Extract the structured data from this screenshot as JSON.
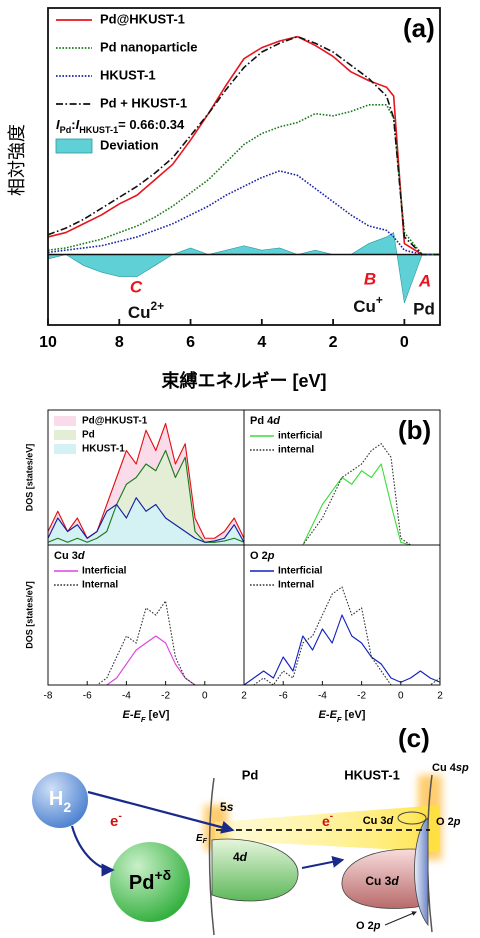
{
  "chart_data": [
    {
      "type": "line",
      "panel_label": "(a)",
      "ylabel": "相対強度",
      "xlabel": "束縛エネルギー [eV]",
      "xlim": [
        10,
        -1
      ],
      "xticks": [
        10,
        8,
        6,
        4,
        2,
        0
      ],
      "ylim": [
        -0.32,
        1.12
      ],
      "legend": "upper left",
      "x": [
        10,
        9.5,
        9,
        8.5,
        8,
        7.5,
        7,
        6.5,
        6,
        5.5,
        5,
        4.5,
        4,
        3.5,
        3,
        2.5,
        2,
        1.5,
        1,
        0.5,
        0.3,
        0,
        -0.5,
        -1
      ],
      "series": [
        {
          "name": "Pd@HKUST-1",
          "color": "#e8141e",
          "style": "solid",
          "values": [
            0.08,
            0.1,
            0.14,
            0.18,
            0.23,
            0.27,
            0.34,
            0.41,
            0.52,
            0.64,
            0.77,
            0.89,
            0.94,
            0.97,
            0.99,
            0.95,
            0.9,
            0.83,
            0.79,
            0.76,
            0.72,
            0.05,
            0,
            0
          ]
        },
        {
          "name": "Pd nanoparticle",
          "color": "#1c7a1c",
          "style": "dotted",
          "values": [
            0.02,
            0.03,
            0.05,
            0.07,
            0.1,
            0.13,
            0.17,
            0.22,
            0.28,
            0.34,
            0.42,
            0.5,
            0.55,
            0.58,
            0.6,
            0.64,
            0.63,
            0.65,
            0.68,
            0.68,
            0.62,
            0.1,
            0,
            0
          ]
        },
        {
          "name": "HKUST-1",
          "color": "#1a22a8",
          "style": "dotted",
          "values": [
            0.01,
            0.02,
            0.03,
            0.04,
            0.06,
            0.08,
            0.11,
            0.14,
            0.18,
            0.22,
            0.27,
            0.31,
            0.35,
            0.38,
            0.36,
            0.3,
            0.24,
            0.18,
            0.13,
            0.11,
            0.08,
            0.02,
            0,
            0
          ]
        },
        {
          "name": "Pd + HKUST-1",
          "color": "#111111",
          "style": "dashdot",
          "values": [
            0.09,
            0.12,
            0.16,
            0.21,
            0.26,
            0.31,
            0.37,
            0.44,
            0.54,
            0.64,
            0.75,
            0.85,
            0.92,
            0.96,
            0.99,
            0.96,
            0.92,
            0.86,
            0.8,
            0.72,
            0.62,
            0.08,
            0,
            0
          ]
        },
        {
          "name": "Deviation",
          "color": "#5fd0d6",
          "style": "area",
          "values": [
            -0.02,
            0,
            -0.05,
            -0.08,
            -0.1,
            -0.1,
            -0.05,
            0,
            0.03,
            0,
            0.02,
            0.04,
            0.02,
            0.03,
            0,
            0.02,
            0,
            0,
            0.05,
            0.08,
            0.1,
            -0.22,
            0,
            0
          ]
        }
      ],
      "ratio_label": [
        "I",
        "Pd",
        ":",
        "I",
        "HKUST-1",
        "= 0.66:0.34"
      ],
      "annotations": [
        {
          "text": "C",
          "color": "#e8141e"
        },
        {
          "text": [
            "Cu",
            "2+"
          ],
          "color": "#111111"
        },
        {
          "text": "B",
          "color": "#e8141e"
        },
        {
          "text": [
            "Cu",
            "+"
          ],
          "color": "#111111"
        },
        {
          "text": "A",
          "color": "#e8141e"
        },
        {
          "text": "Pd",
          "color": "#111111"
        }
      ]
    },
    {
      "type": "line",
      "ylabel": "DOS [states/eV]",
      "xlim": [
        -8,
        2
      ],
      "ylim": [
        0,
        1
      ],
      "legend": "upper left",
      "x": [
        -8,
        -7.5,
        -7,
        -6.5,
        -6,
        -5.5,
        -5,
        -4.5,
        -4,
        -3.5,
        -3,
        -2.5,
        -2,
        -1.5,
        -1,
        -0.5,
        0,
        0.5,
        1,
        1.5,
        2
      ],
      "series": [
        {
          "name": "Pd@HKUST-1",
          "color": "#e01010",
          "fill": "#f9dbe9",
          "style": "solid",
          "values": [
            0.1,
            0.25,
            0.1,
            0.2,
            0.05,
            0.1,
            0.3,
            0.5,
            0.7,
            0.6,
            0.85,
            0.7,
            0.9,
            0.6,
            0.75,
            0.2,
            0.05,
            0.05,
            0.1,
            0.2,
            0.05
          ]
        },
        {
          "name": "Pd",
          "color": "#1a7a1a",
          "fill": "#e4eed6",
          "style": "solid",
          "values": [
            0.02,
            0.05,
            0.02,
            0.05,
            0.02,
            0.05,
            0.1,
            0.3,
            0.45,
            0.5,
            0.6,
            0.55,
            0.7,
            0.5,
            0.65,
            0.1,
            0.02,
            0.02,
            0.03,
            0.05,
            0.02
          ]
        },
        {
          "name": "HKUST-1",
          "color": "#1020a0",
          "fill": "#d4f1f4",
          "style": "solid",
          "values": [
            0.05,
            0.2,
            0.1,
            0.15,
            0.05,
            0.1,
            0.25,
            0.3,
            0.2,
            0.35,
            0.25,
            0.3,
            0.2,
            0.15,
            0.1,
            0.05,
            0.02,
            0.03,
            0.05,
            0.15,
            0.02
          ]
        }
      ]
    },
    {
      "type": "line",
      "panel_label": "(b)",
      "title": [
        "Pd 4",
        "d"
      ],
      "xlim": [
        -8,
        2
      ],
      "ylim": [
        0,
        1
      ],
      "legend": "upper left",
      "x": [
        -8,
        -7.5,
        -7,
        -6.5,
        -6,
        -5.5,
        -5,
        -4.5,
        -4,
        -3.5,
        -3,
        -2.5,
        -2,
        -1.5,
        -1,
        -0.5,
        0,
        0.5,
        1,
        1.5,
        2
      ],
      "series": [
        {
          "name": "interficial",
          "color": "#3ddc3d",
          "style": "solid",
          "values": [
            0,
            0,
            0,
            0,
            0,
            0,
            0,
            0.15,
            0.3,
            0.4,
            0.5,
            0.45,
            0.55,
            0.5,
            0.6,
            0.3,
            0.02,
            0,
            0,
            0,
            0
          ]
        },
        {
          "name": "internal",
          "color": "#333333",
          "style": "dotted",
          "values": [
            0,
            0,
            0,
            0,
            0,
            0,
            0,
            0.1,
            0.2,
            0.35,
            0.5,
            0.55,
            0.6,
            0.7,
            0.75,
            0.65,
            0.05,
            0,
            0,
            0,
            0
          ]
        }
      ]
    },
    {
      "type": "line",
      "title": [
        "Cu 3",
        "d"
      ],
      "ylabel": "DOS [states/eV]",
      "xlabel": [
        "E",
        "-",
        "E",
        "F",
        " [eV]"
      ],
      "xlim": [
        -8,
        2
      ],
      "xticks": [
        -8,
        -6,
        -4,
        -2,
        0,
        2
      ],
      "ylim": [
        0,
        1
      ],
      "legend": "upper left",
      "x": [
        -8,
        -7.5,
        -7,
        -6.5,
        -6,
        -5.5,
        -5,
        -4.5,
        -4,
        -3.5,
        -3,
        -2.5,
        -2,
        -1.5,
        -1,
        -0.5,
        0,
        0.5,
        1,
        1.5,
        2
      ],
      "series": [
        {
          "name": "Interficial",
          "color": "#e040e0",
          "style": "solid",
          "values": [
            0,
            0,
            0,
            0,
            0,
            0,
            0,
            0.05,
            0.15,
            0.25,
            0.3,
            0.35,
            0.3,
            0.15,
            0.05,
            0,
            0,
            0,
            0,
            0,
            0
          ]
        },
        {
          "name": "Internal",
          "color": "#333333",
          "style": "dotted",
          "values": [
            0,
            0,
            0,
            0,
            0,
            0,
            0.05,
            0.2,
            0.35,
            0.3,
            0.55,
            0.5,
            0.6,
            0.2,
            0.05,
            0,
            0,
            0,
            0,
            0,
            0
          ]
        }
      ]
    },
    {
      "type": "line",
      "title": [
        "O 2",
        "p"
      ],
      "xlabel": [
        "E",
        "-",
        "E",
        "F",
        " [eV]"
      ],
      "xlim": [
        -8,
        2
      ],
      "xticks": [
        -6,
        -4,
        -2,
        0,
        2
      ],
      "ylim": [
        0,
        1
      ],
      "legend": "upper left",
      "x": [
        -8,
        -7.5,
        -7,
        -6.5,
        -6,
        -5.5,
        -5,
        -4.5,
        -4,
        -3.5,
        -3,
        -2.5,
        -2,
        -1.5,
        -1,
        -0.5,
        0,
        0.5,
        1,
        1.5,
        2
      ],
      "series": [
        {
          "name": "Interficial",
          "color": "#1020c0",
          "style": "solid",
          "values": [
            0,
            0.05,
            0.1,
            0.05,
            0.2,
            0.1,
            0.35,
            0.25,
            0.4,
            0.3,
            0.5,
            0.35,
            0.3,
            0.2,
            0.15,
            0.05,
            0.02,
            0.05,
            0.1,
            0.05,
            0.02
          ]
        },
        {
          "name": "Internal",
          "color": "#333333",
          "style": "dotted",
          "values": [
            0,
            0,
            0.05,
            0,
            0.1,
            0.05,
            0.3,
            0.35,
            0.5,
            0.65,
            0.7,
            0.5,
            0.55,
            0.2,
            0.1,
            0,
            0,
            0,
            0,
            0,
            0.05
          ]
        }
      ]
    }
  ],
  "diagram": {
    "panel_label": "(c)",
    "h2": [
      "H",
      "2"
    ],
    "e_left": [
      "e",
      "-"
    ],
    "pd_ion": [
      "Pd",
      "+δ"
    ],
    "pd": "Pd",
    "hkust": "HKUST-1",
    "s5": [
      "5",
      "s"
    ],
    "ef": [
      "E",
      "F"
    ],
    "d4": [
      "4",
      "d"
    ],
    "e_mid": [
      "e",
      "-"
    ],
    "cu3d_top": [
      "Cu 3",
      "d"
    ],
    "cu4sp": [
      "Cu 4",
      "sp"
    ],
    "o2p_top": [
      "O 2",
      "p"
    ],
    "cu3d_low": [
      "Cu 3",
      "d"
    ],
    "o2p_low": [
      "O 2",
      "p"
    ]
  }
}
